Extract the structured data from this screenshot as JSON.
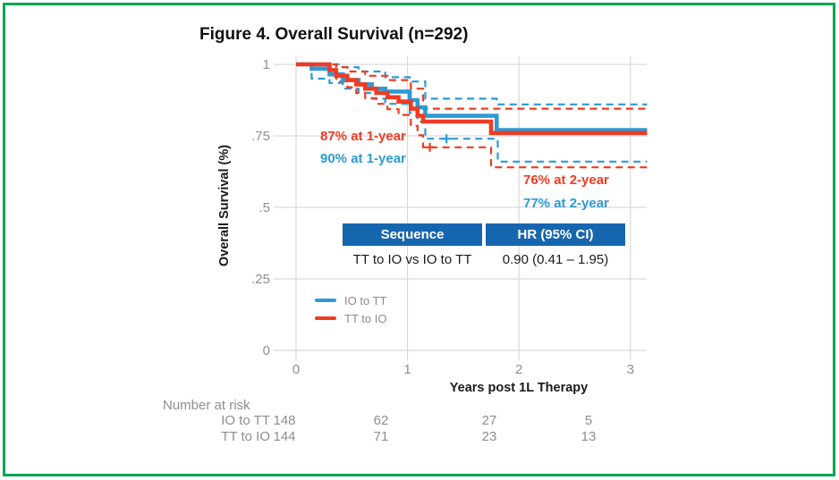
{
  "figure": {
    "border_color": "#00A651",
    "background": "#ffffff"
  },
  "chart_data": {
    "type": "line",
    "subtype": "kaplan-meier-step",
    "title": "Figure 4. Overall Survival (n=292)",
    "xlabel": "Years post 1L Therapy",
    "ylabel": "Overall Survival (%)",
    "xlim": [
      0,
      3.15
    ],
    "ylim": [
      0,
      1
    ],
    "grid": true,
    "legend_position": "inside-lower-left",
    "xticks": [
      0,
      1,
      2,
      3
    ],
    "yticks": [
      {
        "v": 0,
        "label": "0"
      },
      {
        "v": 0.25,
        "label": ".25"
      },
      {
        "v": 0.5,
        "label": ".5"
      },
      {
        "v": 0.75,
        "label": ".75"
      },
      {
        "v": 1,
        "label": "1"
      }
    ],
    "series": [
      {
        "name": "IO to TT 95% CI upper",
        "role": "ci",
        "dashed": true,
        "color": "#2D9AD5",
        "steps": [
          [
            0,
            1
          ],
          [
            0.42,
            1
          ],
          [
            0.42,
            0.99
          ],
          [
            0.56,
            0.99
          ],
          [
            0.56,
            0.975
          ],
          [
            0.8,
            0.975
          ],
          [
            0.8,
            0.955
          ],
          [
            1.02,
            0.955
          ],
          [
            1.02,
            0.94
          ],
          [
            1.16,
            0.94
          ],
          [
            1.16,
            0.88
          ],
          [
            1.8,
            0.88
          ],
          [
            1.8,
            0.86
          ],
          [
            3.15,
            0.86
          ]
        ]
      },
      {
        "name": "IO to TT 95% CI lower",
        "role": "ci",
        "dashed": true,
        "color": "#2D9AD5",
        "steps": [
          [
            0,
            1
          ],
          [
            0.14,
            1
          ],
          [
            0.14,
            0.95
          ],
          [
            0.3,
            0.95
          ],
          [
            0.3,
            0.935
          ],
          [
            0.42,
            0.935
          ],
          [
            0.42,
            0.915
          ],
          [
            0.56,
            0.915
          ],
          [
            0.56,
            0.9
          ],
          [
            0.68,
            0.9
          ],
          [
            0.68,
            0.88
          ],
          [
            0.8,
            0.88
          ],
          [
            0.8,
            0.862
          ],
          [
            1.02,
            0.862
          ],
          [
            1.02,
            0.83
          ],
          [
            1.09,
            0.83
          ],
          [
            1.09,
            0.8
          ],
          [
            1.16,
            0.8
          ],
          [
            1.16,
            0.74
          ],
          [
            1.81,
            0.74
          ],
          [
            1.81,
            0.66
          ],
          [
            3.15,
            0.66
          ]
        ]
      },
      {
        "name": "TT to IO 95% CI upper",
        "role": "ci",
        "dashed": true,
        "color": "#EF3B23",
        "steps": [
          [
            0,
            1
          ],
          [
            0.36,
            1
          ],
          [
            0.36,
            0.99
          ],
          [
            0.46,
            0.99
          ],
          [
            0.46,
            0.975
          ],
          [
            0.62,
            0.975
          ],
          [
            0.62,
            0.96
          ],
          [
            0.82,
            0.96
          ],
          [
            0.82,
            0.945
          ],
          [
            1.03,
            0.945
          ],
          [
            1.03,
            0.915
          ],
          [
            1.14,
            0.915
          ],
          [
            1.14,
            0.845
          ],
          [
            3.15,
            0.845
          ]
        ]
      },
      {
        "name": "TT to IO 95% CI lower",
        "role": "ci",
        "dashed": true,
        "color": "#EF3B23",
        "steps": [
          [
            0,
            1
          ],
          [
            0.3,
            1
          ],
          [
            0.3,
            0.962
          ],
          [
            0.36,
            0.962
          ],
          [
            0.36,
            0.94
          ],
          [
            0.46,
            0.94
          ],
          [
            0.46,
            0.92
          ],
          [
            0.54,
            0.92
          ],
          [
            0.54,
            0.9
          ],
          [
            0.62,
            0.9
          ],
          [
            0.62,
            0.882
          ],
          [
            0.72,
            0.882
          ],
          [
            0.72,
            0.862
          ],
          [
            0.82,
            0.862
          ],
          [
            0.82,
            0.843
          ],
          [
            0.92,
            0.843
          ],
          [
            0.92,
            0.823
          ],
          [
            1.03,
            0.823
          ],
          [
            1.03,
            0.785
          ],
          [
            1.09,
            0.785
          ],
          [
            1.09,
            0.752
          ],
          [
            1.14,
            0.752
          ],
          [
            1.14,
            0.71
          ],
          [
            1.75,
            0.71
          ],
          [
            1.75,
            0.64
          ],
          [
            3.15,
            0.64
          ]
        ]
      },
      {
        "name": "IO to TT",
        "role": "main",
        "dashed": false,
        "color": "#2D9AD5",
        "steps": [
          [
            0,
            1
          ],
          [
            0.14,
            1
          ],
          [
            0.14,
            0.985
          ],
          [
            0.3,
            0.985
          ],
          [
            0.3,
            0.965
          ],
          [
            0.42,
            0.965
          ],
          [
            0.42,
            0.945
          ],
          [
            0.56,
            0.945
          ],
          [
            0.56,
            0.93
          ],
          [
            0.68,
            0.93
          ],
          [
            0.68,
            0.915
          ],
          [
            0.8,
            0.915
          ],
          [
            0.8,
            0.905
          ],
          [
            1.02,
            0.905
          ],
          [
            1.02,
            0.875
          ],
          [
            1.09,
            0.875
          ],
          [
            1.09,
            0.85
          ],
          [
            1.16,
            0.85
          ],
          [
            1.16,
            0.82
          ],
          [
            1.8,
            0.82
          ],
          [
            1.8,
            0.77
          ],
          [
            3.15,
            0.77
          ]
        ]
      },
      {
        "name": "TT to IO",
        "role": "main",
        "dashed": false,
        "color": "#EF3B23",
        "steps": [
          [
            0,
            1
          ],
          [
            0.3,
            1
          ],
          [
            0.3,
            0.98
          ],
          [
            0.36,
            0.98
          ],
          [
            0.36,
            0.96
          ],
          [
            0.46,
            0.96
          ],
          [
            0.46,
            0.945
          ],
          [
            0.54,
            0.945
          ],
          [
            0.54,
            0.93
          ],
          [
            0.62,
            0.93
          ],
          [
            0.62,
            0.915
          ],
          [
            0.72,
            0.915
          ],
          [
            0.72,
            0.9
          ],
          [
            0.82,
            0.9
          ],
          [
            0.82,
            0.885
          ],
          [
            0.92,
            0.885
          ],
          [
            0.92,
            0.87
          ],
          [
            1.03,
            0.87
          ],
          [
            1.03,
            0.845
          ],
          [
            1.09,
            0.845
          ],
          [
            1.09,
            0.82
          ],
          [
            1.14,
            0.82
          ],
          [
            1.14,
            0.8
          ],
          [
            1.75,
            0.8
          ],
          [
            1.75,
            0.76
          ],
          [
            3.15,
            0.76
          ]
        ]
      }
    ],
    "censor_marks": [
      {
        "x": 1.2,
        "y": 0.71,
        "color": "#EF3B23"
      },
      {
        "x": 1.35,
        "y": 0.74,
        "color": "#2D9AD5"
      }
    ],
    "annotations": [
      {
        "text": "87% at 1-year",
        "color": "#EF3B23",
        "series": "TT to IO",
        "time_years": 1,
        "value_pct": 87
      },
      {
        "text": "90% at 1-year",
        "color": "#2D9AD5",
        "series": "IO to TT",
        "time_years": 1,
        "value_pct": 90
      },
      {
        "text": "76% at 2-year",
        "color": "#EF3B23",
        "series": "TT to IO",
        "time_years": 2,
        "value_pct": 76
      },
      {
        "text": "77% at 2-year",
        "color": "#2D9AD5",
        "series": "IO to TT",
        "time_years": 2,
        "value_pct": 77
      }
    ],
    "legend": [
      {
        "label": "IO to TT",
        "color": "#2D9AD5"
      },
      {
        "label": "TT to IO",
        "color": "#EF3B23"
      }
    ],
    "hr_table": {
      "header_bg": "#1666AF",
      "headers": [
        "Sequence",
        "HR (95% CI)"
      ],
      "rows": [
        [
          "TT to IO vs IO to TT",
          "0.90 (0.41 – 1.95)"
        ]
      ]
    },
    "risk_table": {
      "title": "Number at risk",
      "times": [
        0,
        1,
        2,
        3
      ],
      "rows": [
        {
          "label": "IO to TT",
          "counts": [
            "148",
            "62",
            "27",
            "5"
          ]
        },
        {
          "label": "TT to IO",
          "counts": [
            "144",
            "71",
            "23",
            "13"
          ]
        }
      ]
    }
  }
}
